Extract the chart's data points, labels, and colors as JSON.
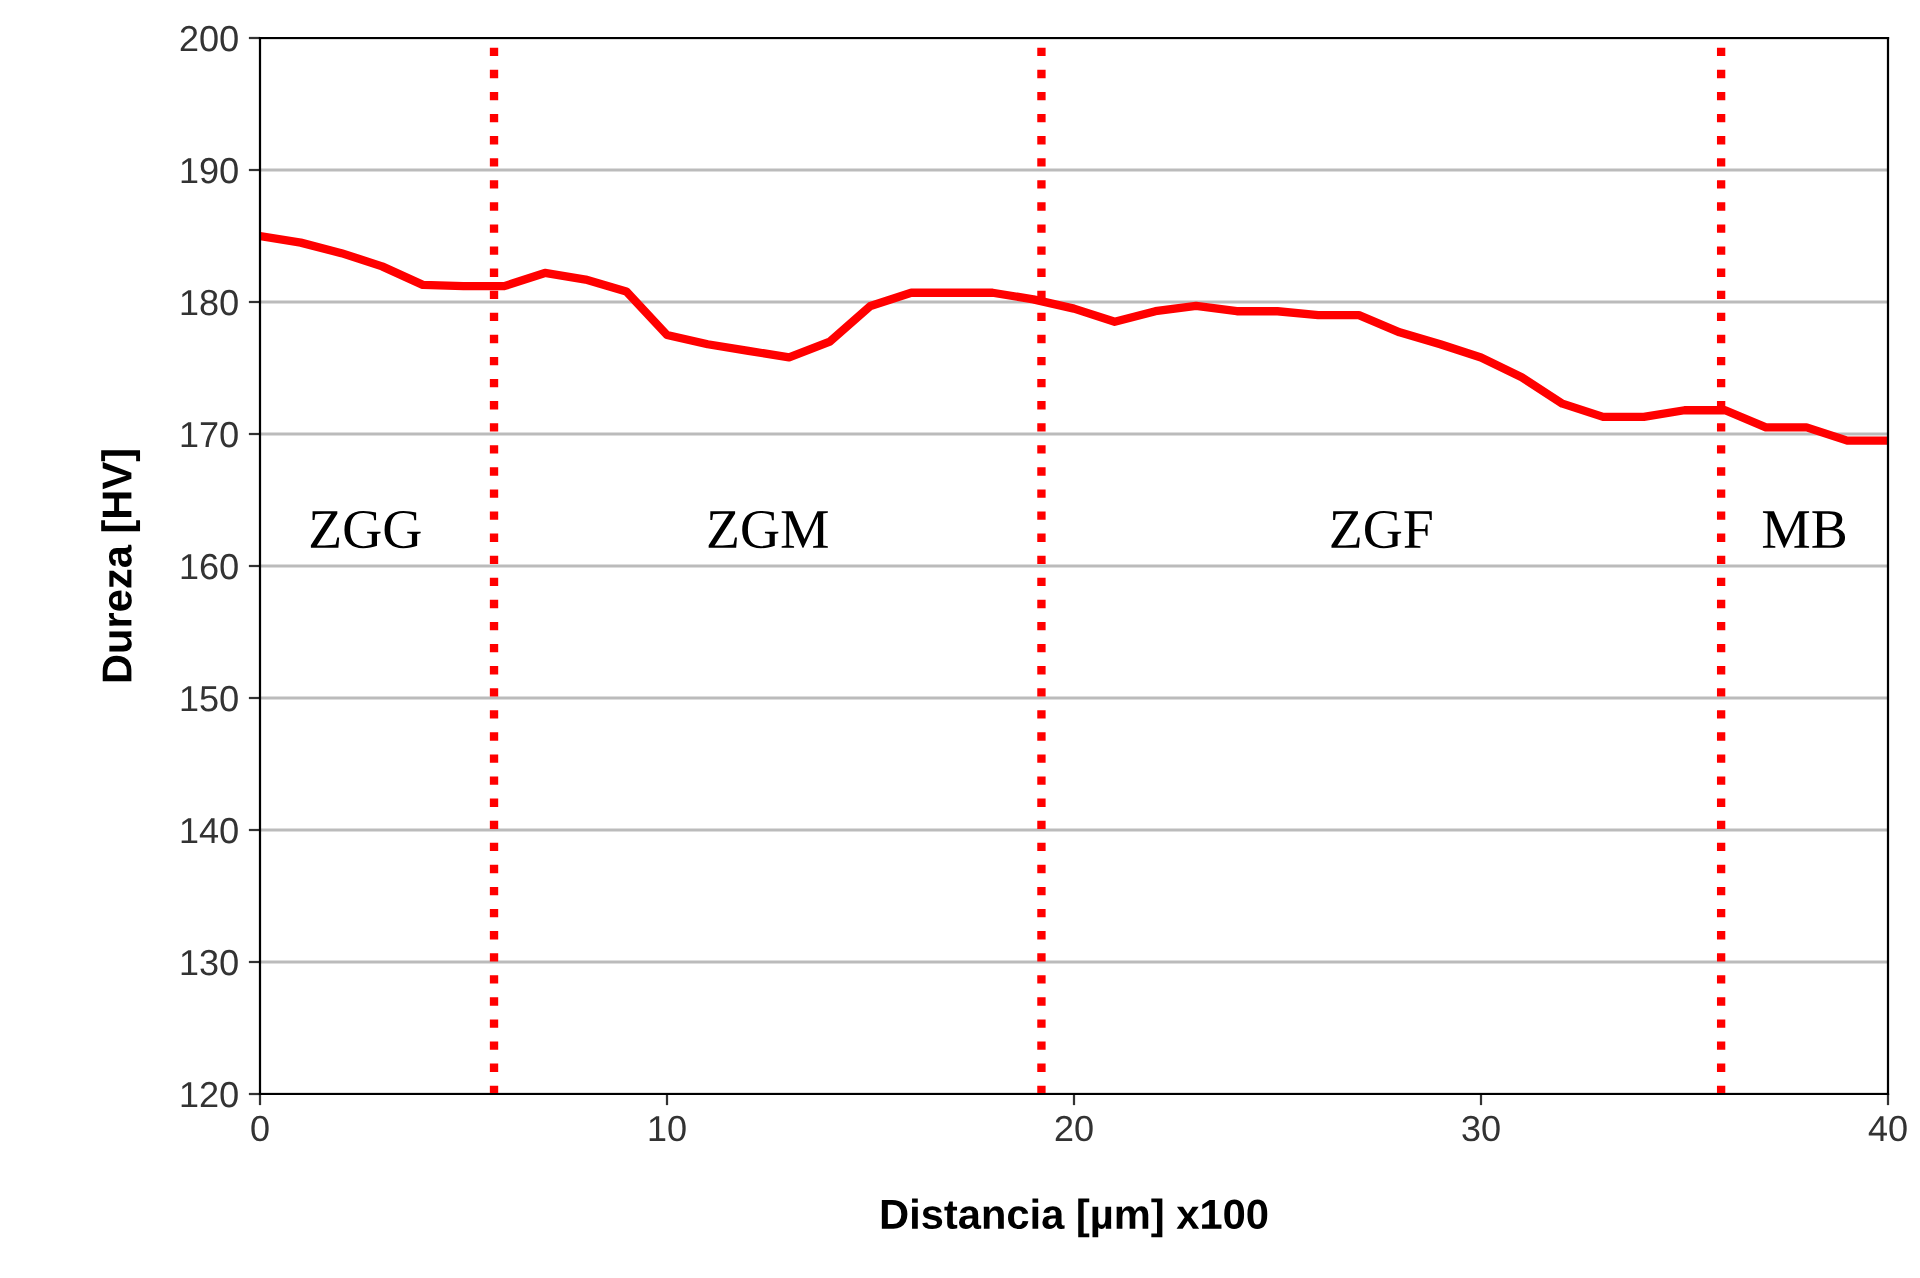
{
  "chart_data": {
    "type": "line",
    "xlabel": "Distancia [µm] x100",
    "ylabel": "Dureza [HV]",
    "x": [
      0,
      1,
      2,
      3,
      4,
      5,
      6,
      7,
      8,
      9,
      10,
      11,
      12,
      13,
      14,
      15,
      16,
      17,
      18,
      19,
      20,
      21,
      22,
      23,
      24,
      25,
      26,
      27,
      28,
      29,
      30,
      31,
      32,
      33,
      34,
      35,
      36,
      37,
      38,
      39,
      40
    ],
    "series": [
      {
        "color": "#ff0000",
        "values": [
          185,
          184.5,
          183.7,
          182.7,
          181.3,
          181.2,
          181.2,
          182.2,
          181.7,
          180.8,
          177.5,
          176.8,
          176.3,
          175.8,
          177,
          179.7,
          180.7,
          180.7,
          180.7,
          180.2,
          179.5,
          178.5,
          179.3,
          179.7,
          179.3,
          179.3,
          179,
          179,
          177.7,
          176.8,
          175.8,
          174.3,
          172.3,
          171.3,
          171.3,
          171.8,
          171.8,
          170.5,
          170.5,
          169.5,
          169.5
        ]
      }
    ],
    "xlim": [
      0,
      40
    ],
    "xticks": [
      0,
      10,
      20,
      30,
      40
    ],
    "ylim": [
      120,
      200
    ],
    "yticks": [
      120,
      130,
      140,
      150,
      160,
      170,
      180,
      190,
      200
    ],
    "grid": "y",
    "ref_lines": [
      {
        "axis": "x",
        "value": 5.75,
        "color": "#ff0000",
        "line_style": "dotted"
      },
      {
        "axis": "x",
        "value": 19.2,
        "color": "#ff0000",
        "line_style": "dotted"
      },
      {
        "axis": "x",
        "value": 35.9,
        "color": "#ff0000",
        "line_style": "dotted"
      }
    ],
    "annotations": [
      "ZGG",
      "ZGM",
      "ZGF",
      "MB"
    ]
  }
}
